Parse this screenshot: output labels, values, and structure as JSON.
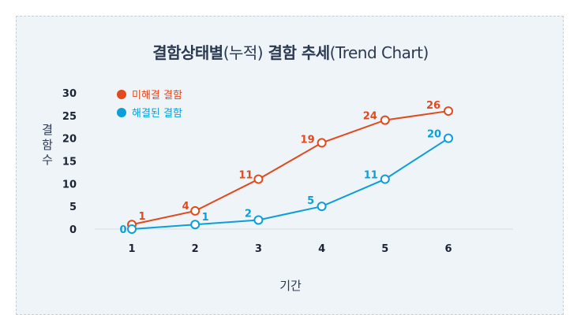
{
  "title": {
    "main": "결함상태별",
    "paren1": "(누적)",
    "main2": " 결함 추세",
    "paren2": "(Trend Chart)"
  },
  "chart_data": {
    "type": "line",
    "x": [
      1,
      2,
      3,
      4,
      5,
      6
    ],
    "series": [
      {
        "name": "미해결 결함",
        "values": [
          1,
          4,
          11,
          19,
          24,
          26
        ],
        "color": "#e2491c"
      },
      {
        "name": "해결된 결함",
        "values": [
          0,
          1,
          2,
          5,
          11,
          20
        ],
        "color": "#0a9fd8"
      }
    ],
    "yticks": [
      0,
      5,
      10,
      15,
      20,
      25,
      30
    ],
    "xlabel": "기간",
    "ylabel": "결함수",
    "ylim": [
      0,
      30
    ],
    "legend": "top-left",
    "grid": false
  }
}
